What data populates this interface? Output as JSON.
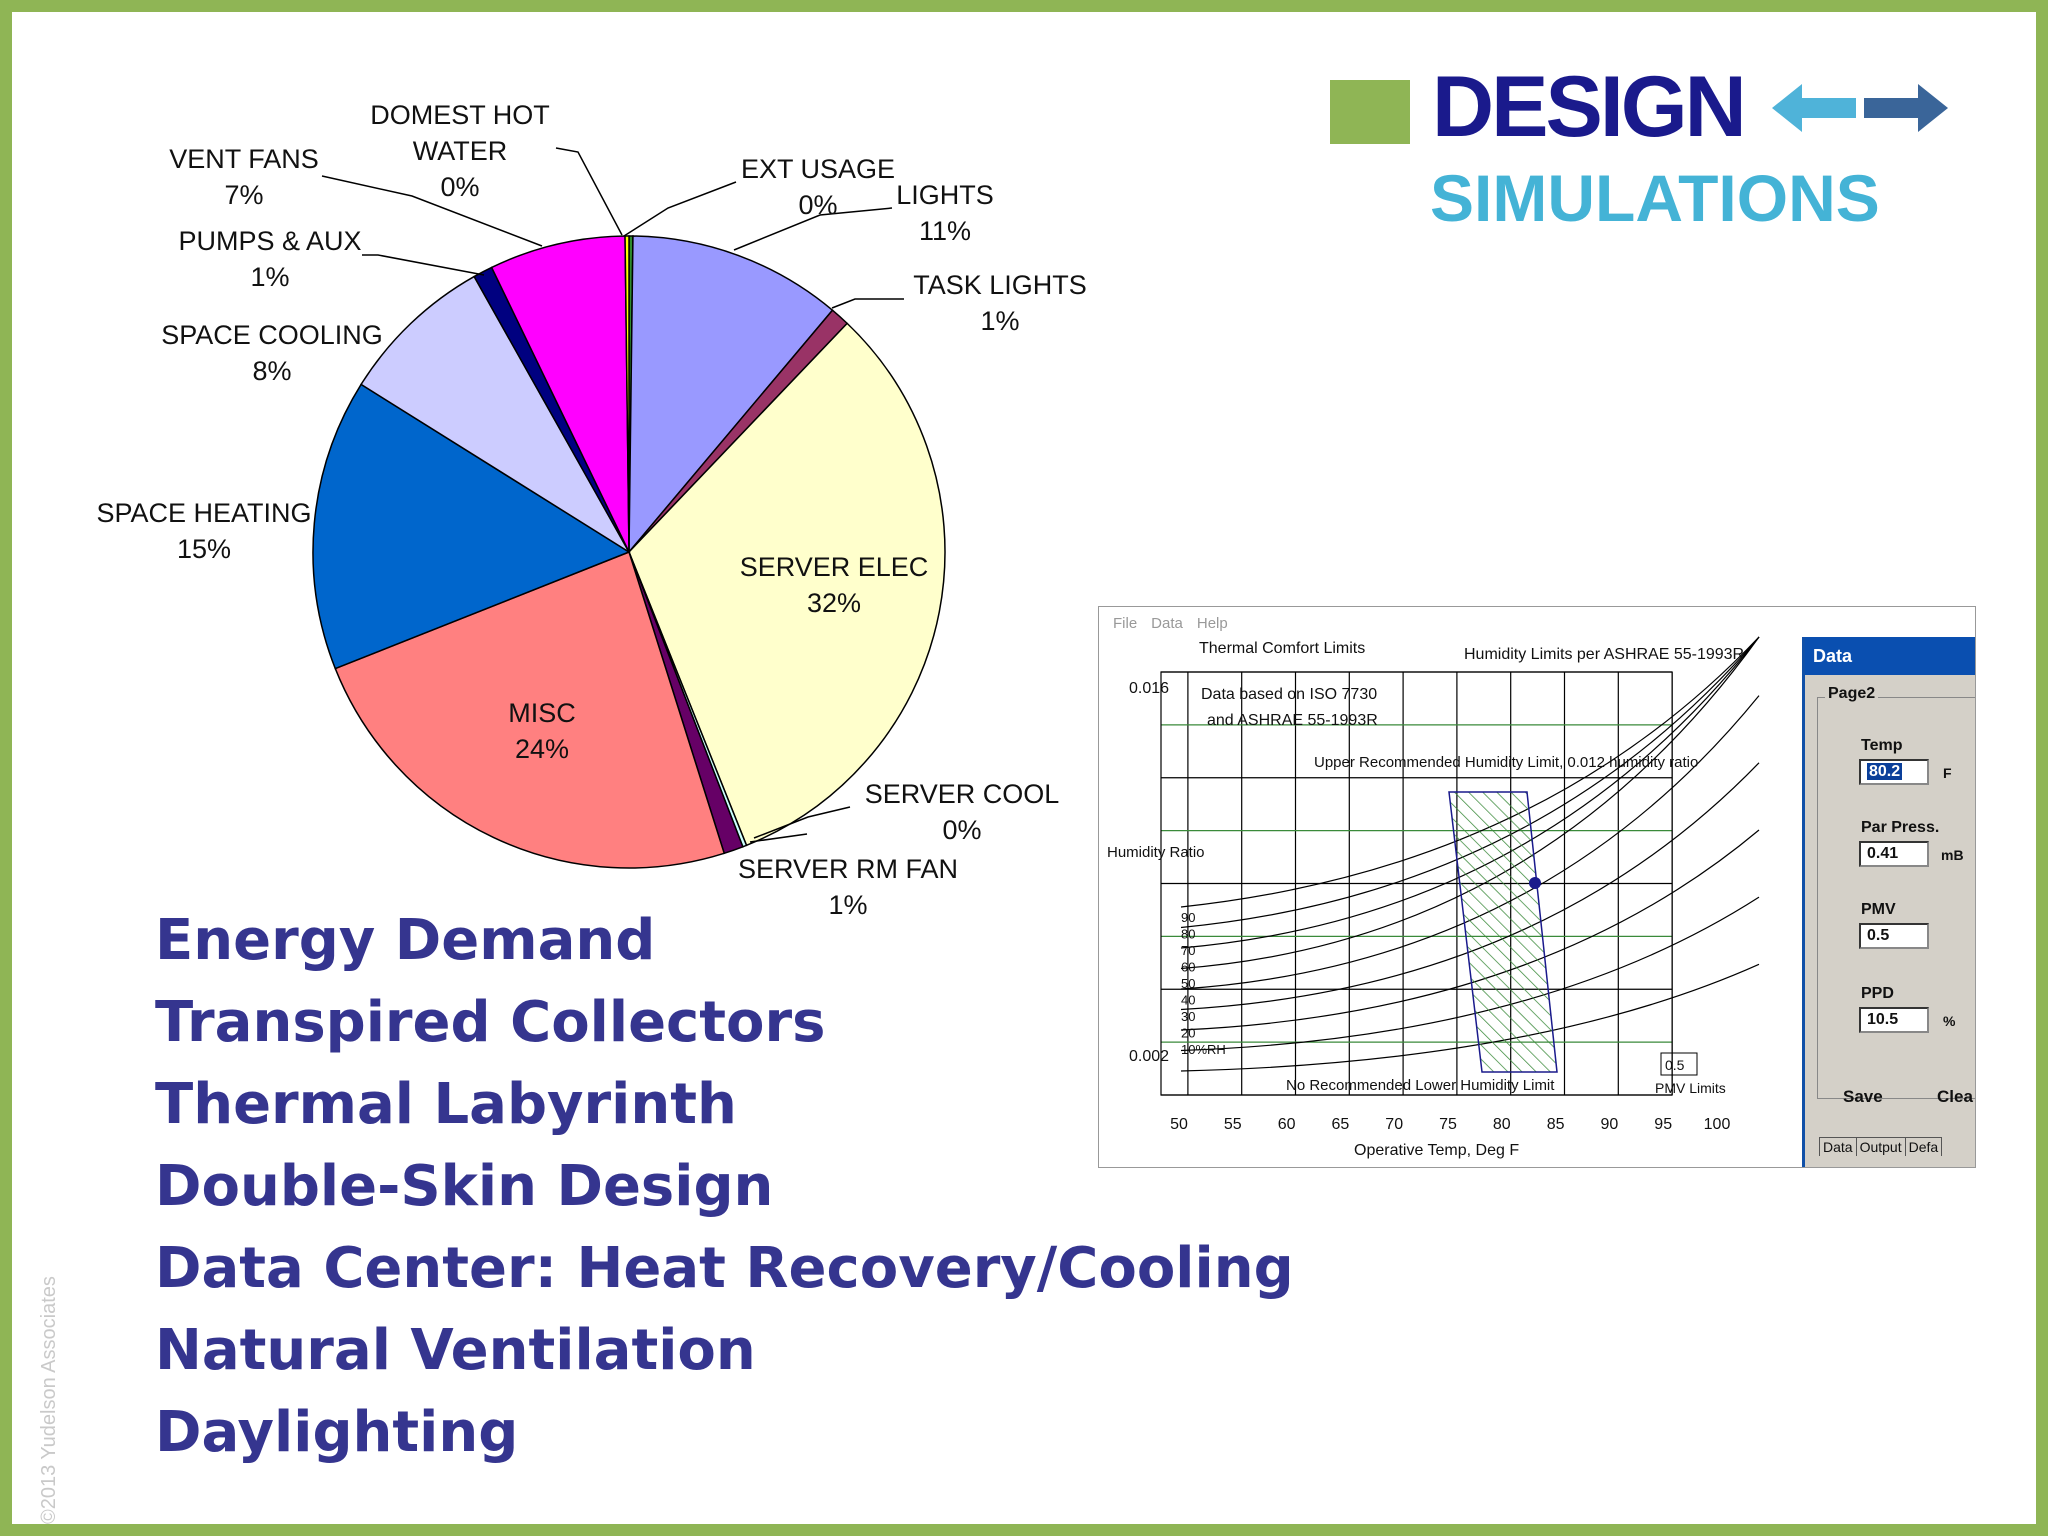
{
  "title": {
    "design": "DESIGN",
    "simulations": "SIMULATIONS"
  },
  "colors": {
    "slide_border": "#8fb555",
    "title_design": "#1a1a8c",
    "title_simulations": "#44b3d6",
    "bullet_text": "#35358f",
    "arrow_left": "#4fb3d9",
    "arrow_right": "#3a6599"
  },
  "chart_data": [
    {
      "type": "pie",
      "title": "",
      "slices": [
        {
          "label": "EXT USAGE",
          "value": 0,
          "percent_label": "0%",
          "color": "#2e8b2e"
        },
        {
          "label": "LIGHTS",
          "value": 11,
          "percent_label": "11%",
          "color": "#9999ff"
        },
        {
          "label": "TASK LIGHTS",
          "value": 1,
          "percent_label": "1%",
          "color": "#993366"
        },
        {
          "label": "SERVER ELEC",
          "value": 32,
          "percent_label": "32%",
          "color": "#ffffcc"
        },
        {
          "label": "SERVER COOL",
          "value": 0,
          "percent_label": "0%",
          "color": "#ccffff"
        },
        {
          "label": "SERVER RM FAN",
          "value": 1,
          "percent_label": "1%",
          "color": "#660066"
        },
        {
          "label": "MISC",
          "value": 24,
          "percent_label": "24%",
          "color": "#ff8080"
        },
        {
          "label": "SPACE HEATING",
          "value": 15,
          "percent_label": "15%",
          "color": "#0066cc"
        },
        {
          "label": "SPACE COOLING",
          "value": 8,
          "percent_label": "8%",
          "color": "#ccccff"
        },
        {
          "label": "PUMPS & AUX",
          "value": 1,
          "percent_label": "1%",
          "color": "#000080"
        },
        {
          "label": "VENT FANS",
          "value": 7,
          "percent_label": "7%",
          "color": "#ff00ff"
        },
        {
          "label": "DOMEST HOT WATER",
          "value": 0,
          "percent_label": "0%",
          "color": "#ffff00"
        }
      ],
      "display_labels": {
        "ext_usage": [
          "EXT USAGE",
          "0%"
        ],
        "lights": [
          "LIGHTS",
          "11%"
        ],
        "task_lights": [
          "TASK LIGHTS",
          "1%"
        ],
        "server_elec": [
          "SERVER ELEC",
          "32%"
        ],
        "server_cool": [
          "SERVER COOL",
          "0%"
        ],
        "server_rm_fan": [
          "SERVER RM FAN",
          "1%"
        ],
        "misc": [
          "MISC",
          "24%"
        ],
        "space_heating": [
          "SPACE HEATING",
          "15%"
        ],
        "space_cooling": [
          "SPACE COOLING",
          "8%"
        ],
        "pumps_aux": [
          "PUMPS & AUX",
          "1%"
        ],
        "vent_fans": [
          "VENT FANS",
          "7%"
        ],
        "domest_hot_water": [
          "DOMEST HOT",
          "WATER",
          "0%"
        ]
      }
    },
    {
      "type": "line",
      "title": "Thermal Comfort Limits",
      "subtitle": "Humidity Limits per ASHRAE 55-1993R",
      "xlabel": "Operative Temp, Deg F",
      "ylabel": "Humidity Ratio",
      "xlim": [
        50,
        100
      ],
      "x_ticks": [
        "50",
        "55",
        "60",
        "65",
        "70",
        "75",
        "80",
        "85",
        "90",
        "95",
        "100"
      ],
      "y_ticks": [
        "0.016",
        "0.002"
      ],
      "rh_curve_labels": [
        "90",
        "80",
        "70",
        "60",
        "50",
        "40",
        "30",
        "20",
        "10%RH"
      ],
      "annotations": {
        "data_note_1": "Data based on ISO 7730",
        "data_note_2": "and ASHRAE 55-1993R",
        "upper_limit": "Upper Recommended Humidity Limit, 0.012 humidity ratio",
        "lower_limit": "No Recommended Lower Humidity Limit",
        "pmv_box": "0.5",
        "pmv_limits": "PMV Limits"
      },
      "comfort_zone": {
        "pmv": 0.5
      },
      "current_point": {
        "temp": 80.2
      }
    }
  ],
  "app": {
    "menu": [
      "File",
      "Data",
      "Help"
    ],
    "panel_title": "Data",
    "page_label": "Page2",
    "fields": [
      {
        "label": "Temp",
        "value": "80.2",
        "unit": "F"
      },
      {
        "label": "Par Press.",
        "value": "0.41",
        "unit": "mB"
      },
      {
        "label": "PMV",
        "value": "0.5",
        "unit": ""
      },
      {
        "label": "PPD",
        "value": "10.5",
        "unit": "%"
      }
    ],
    "buttons": [
      "Save",
      "Clea"
    ],
    "tabs": [
      "Data",
      "Output",
      "Defa"
    ]
  },
  "bullets": [
    "Energy Demand",
    "Transpired Collectors",
    "Thermal Labyrinth",
    "Double-Skin Design",
    "Data Center: Heat Recovery/Cooling",
    "Natural Ventilation",
    "Daylighting"
  ],
  "copyright": "©2013 Yudelson Associates"
}
